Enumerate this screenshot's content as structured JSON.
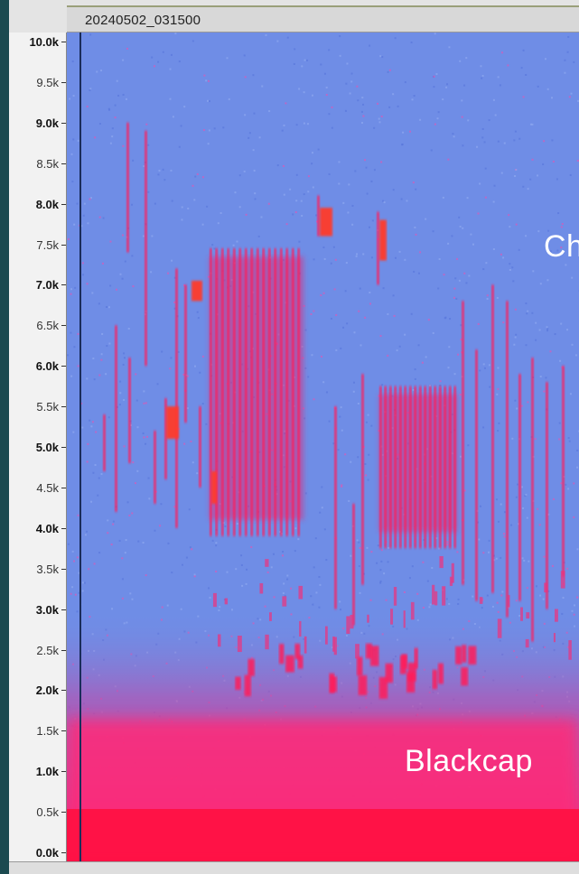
{
  "track": {
    "name": "20240502_031500"
  },
  "frequency_axis": {
    "labels": [
      {
        "text": "10.0k",
        "khz": 10.0,
        "major": true
      },
      {
        "text": "9.5k",
        "khz": 9.5,
        "major": false
      },
      {
        "text": "9.0k",
        "khz": 9.0,
        "major": true
      },
      {
        "text": "8.5k",
        "khz": 8.5,
        "major": false
      },
      {
        "text": "8.0k",
        "khz": 8.0,
        "major": true
      },
      {
        "text": "7.5k",
        "khz": 7.5,
        "major": false
      },
      {
        "text": "7.0k",
        "khz": 7.0,
        "major": true
      },
      {
        "text": "6.5k",
        "khz": 6.5,
        "major": false
      },
      {
        "text": "6.0k",
        "khz": 6.0,
        "major": true
      },
      {
        "text": "5.5k",
        "khz": 5.5,
        "major": false
      },
      {
        "text": "5.0k",
        "khz": 5.0,
        "major": true
      },
      {
        "text": "4.5k",
        "khz": 4.5,
        "major": false
      },
      {
        "text": "4.0k",
        "khz": 4.0,
        "major": true
      },
      {
        "text": "3.5k",
        "khz": 3.5,
        "major": false
      },
      {
        "text": "3.0k",
        "khz": 3.0,
        "major": true
      },
      {
        "text": "2.5k",
        "khz": 2.5,
        "major": false
      },
      {
        "text": "2.0k",
        "khz": 2.0,
        "major": true
      },
      {
        "text": "1.5k",
        "khz": 1.5,
        "major": false
      },
      {
        "text": "1.0k",
        "khz": 1.0,
        "major": true
      },
      {
        "text": "0.5k",
        "khz": 0.5,
        "major": false
      },
      {
        "text": "0.0k",
        "khz": 0.0,
        "major": true
      }
    ],
    "min_khz": 0.0,
    "max_khz": 10.0
  },
  "annotations": {
    "upper": "Ch",
    "lower": "Blackcap"
  },
  "colors": {
    "spectrogram_background": "#6f8de6",
    "signal": "#ff1c5a",
    "signal_hot": "#ff3a2a",
    "noise_floor": "#ff2a78",
    "page_background": "#1b4a50"
  }
}
